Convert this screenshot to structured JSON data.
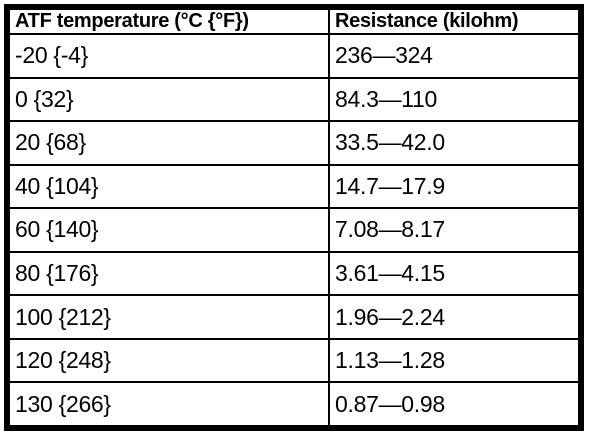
{
  "page": {
    "background_color": "#ffffff",
    "text_color": "#000000",
    "border_color": "#000000"
  },
  "table": {
    "columns": [
      "ATF temperature (°C {°F})",
      "Resistance (kilohm)"
    ],
    "rows": [
      {
        "temperature": "-20 {-4}",
        "resistance": "236—324"
      },
      {
        "temperature": "0 {32}",
        "resistance": "84.3—110"
      },
      {
        "temperature": "20 {68}",
        "resistance": "33.5—42.0"
      },
      {
        "temperature": "40 {104}",
        "resistance": "14.7—17.9"
      },
      {
        "temperature": "60 {140}",
        "resistance": "7.08—8.17"
      },
      {
        "temperature": "80 {176}",
        "resistance": "3.61—4.15"
      },
      {
        "temperature": "100 {212}",
        "resistance": "1.96—2.24"
      },
      {
        "temperature": "120 {248}",
        "resistance": "1.13—1.28"
      },
      {
        "temperature": "130 {266}",
        "resistance": "0.87—0.98"
      }
    ]
  }
}
